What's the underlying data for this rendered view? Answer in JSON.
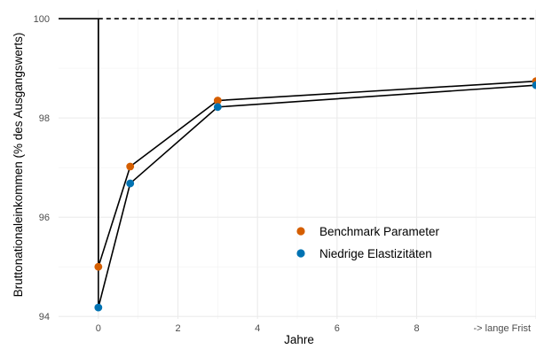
{
  "chart_data": {
    "type": "line",
    "xlabel": "Jahre",
    "ylabel": "Bruttonationaleinkommen (% des Ausgangswerts)",
    "xlim": [
      -1,
      11
    ],
    "ylim": [
      93.95,
      100.18
    ],
    "x_ticks": [
      0,
      2,
      4,
      6,
      8,
      11
    ],
    "x_tick_labels": [
      "0",
      "2",
      "4",
      "6",
      "8",
      "-> lange Frist"
    ],
    "y_ticks": [
      94,
      96,
      98,
      100
    ],
    "y_tick_labels": [
      "94",
      "96",
      "98",
      "100"
    ],
    "grid": true,
    "legend_position": "center-right",
    "reference_line": {
      "y": 100,
      "style": "dashed"
    },
    "pre_shock": {
      "x": [
        -1,
        0
      ],
      "y": 100
    },
    "series": [
      {
        "name": "Benchmark Parameter",
        "color": "#D55E00",
        "x": [
          0,
          0.8,
          3,
          11
        ],
        "y": [
          95.0,
          97.02,
          98.35,
          98.74
        ]
      },
      {
        "name": "Niedrige Elastizitäten",
        "color": "#0072B2",
        "x": [
          0,
          0.8,
          3,
          11
        ],
        "y": [
          94.18,
          96.68,
          98.22,
          98.66
        ]
      }
    ]
  }
}
